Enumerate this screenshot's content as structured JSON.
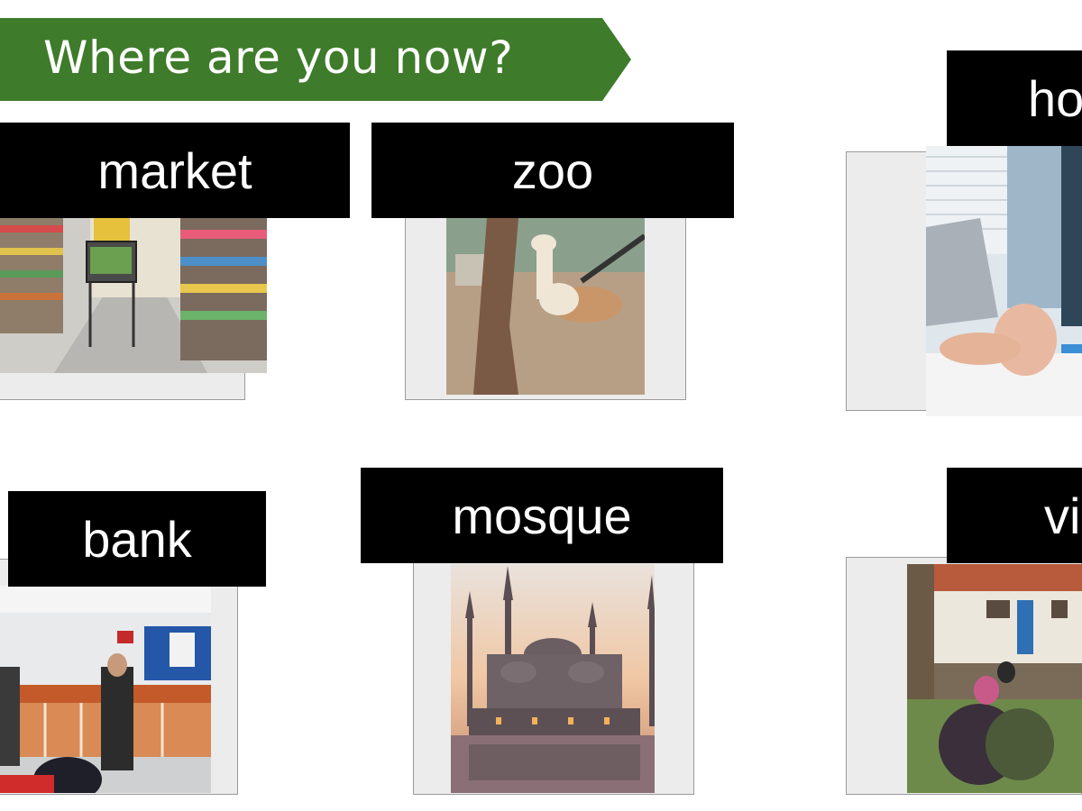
{
  "banner": {
    "title": "Where are you now?",
    "color": "#3e7b2a"
  },
  "cards": [
    {
      "id": "market",
      "label": "market"
    },
    {
      "id": "zoo",
      "label": "zoo"
    },
    {
      "id": "hospital",
      "label": "ho"
    },
    {
      "id": "bank",
      "label": "bank"
    },
    {
      "id": "mosque",
      "label": "mosque"
    },
    {
      "id": "village",
      "label": "vi"
    }
  ]
}
